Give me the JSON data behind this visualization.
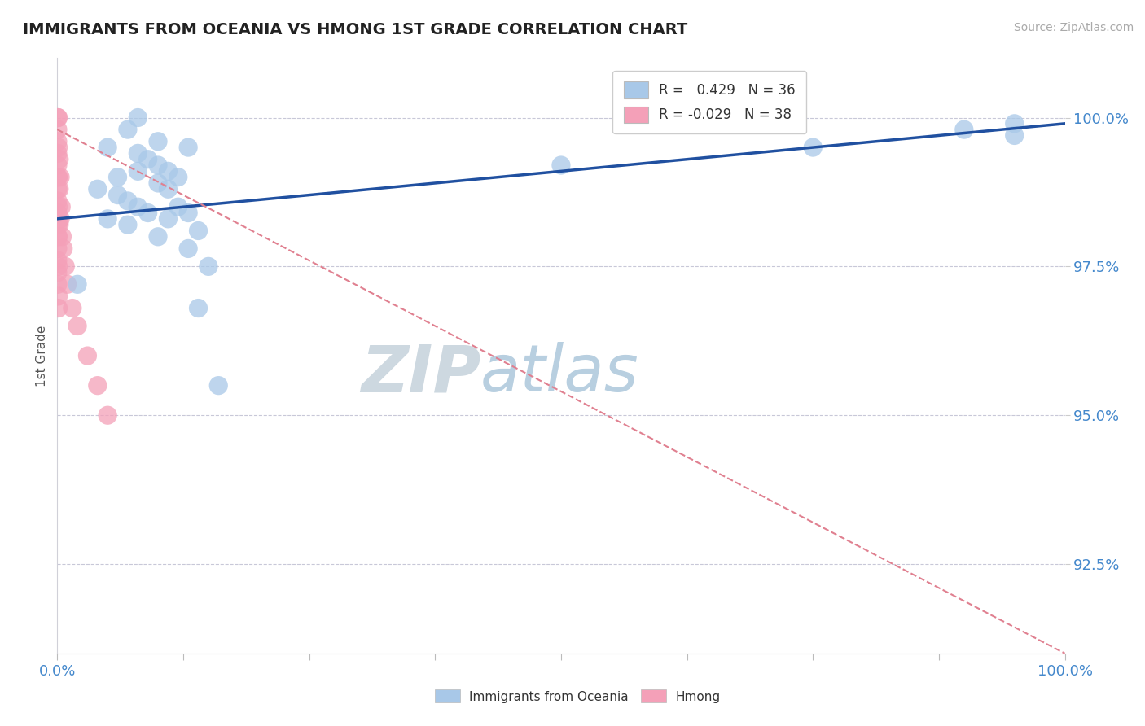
{
  "title": "IMMIGRANTS FROM OCEANIA VS HMONG 1ST GRADE CORRELATION CHART",
  "source_text": "Source: ZipAtlas.com",
  "ylabel": "1st Grade",
  "legend_label1": "Immigrants from Oceania",
  "legend_label2": "Hmong",
  "r1": 0.429,
  "n1": 36,
  "r2": -0.029,
  "n2": 38,
  "xlim": [
    0.0,
    100.0
  ],
  "ylim": [
    91.0,
    101.0
  ],
  "yticks": [
    92.5,
    95.0,
    97.5,
    100.0
  ],
  "xticks": [
    0.0,
    12.5,
    25.0,
    37.5,
    50.0,
    62.5,
    75.0,
    87.5,
    100.0
  ],
  "xtick_labels_show": [
    0.0,
    100.0
  ],
  "color_blue": "#a8c8e8",
  "color_pink": "#f4a0b8",
  "trendline_blue": "#2050a0",
  "trendline_pink": "#e08090",
  "tick_color": "#4488cc",
  "watermark_zip": "ZIP",
  "watermark_atlas": "atlas",
  "watermark_color_zip": "#d0dde8",
  "watermark_color_atlas": "#b8cfe8",
  "blue_scatter_x": [
    2,
    4,
    5,
    5,
    6,
    6,
    7,
    7,
    7,
    8,
    8,
    8,
    8,
    9,
    9,
    10,
    10,
    10,
    10,
    11,
    11,
    11,
    12,
    12,
    13,
    13,
    13,
    14,
    14,
    15,
    16,
    50,
    75,
    90,
    95,
    95
  ],
  "blue_scatter_y": [
    97.2,
    98.8,
    98.3,
    99.5,
    98.7,
    99.0,
    98.2,
    98.6,
    99.8,
    98.5,
    99.1,
    99.4,
    100.0,
    98.4,
    99.3,
    98.0,
    98.9,
    99.2,
    99.6,
    98.3,
    98.8,
    99.1,
    98.5,
    99.0,
    97.8,
    98.4,
    99.5,
    96.8,
    98.1,
    97.5,
    95.5,
    99.2,
    99.5,
    99.8,
    99.7,
    99.9
  ],
  "pink_scatter_x": [
    0.05,
    0.05,
    0.05,
    0.05,
    0.05,
    0.05,
    0.05,
    0.05,
    0.05,
    0.05,
    0.05,
    0.05,
    0.05,
    0.05,
    0.05,
    0.1,
    0.1,
    0.1,
    0.1,
    0.1,
    0.1,
    0.1,
    0.1,
    0.2,
    0.2,
    0.2,
    0.3,
    0.3,
    0.4,
    0.5,
    0.6,
    0.8,
    1.0,
    1.5,
    2.0,
    3.0,
    4.0,
    5.0
  ],
  "pink_scatter_y": [
    100.0,
    99.8,
    99.6,
    99.4,
    99.2,
    99.0,
    98.8,
    98.6,
    98.4,
    98.2,
    98.0,
    97.8,
    97.6,
    97.4,
    97.2,
    100.0,
    99.5,
    99.0,
    98.5,
    98.0,
    97.5,
    97.0,
    96.8,
    99.3,
    98.8,
    98.2,
    99.0,
    98.3,
    98.5,
    98.0,
    97.8,
    97.5,
    97.2,
    96.8,
    96.5,
    96.0,
    95.5,
    95.0
  ],
  "blue_trend_x": [
    0,
    100
  ],
  "blue_trend_y": [
    98.3,
    99.9
  ],
  "pink_trend_x": [
    0,
    100
  ],
  "pink_trend_y": [
    99.8,
    91.0
  ]
}
